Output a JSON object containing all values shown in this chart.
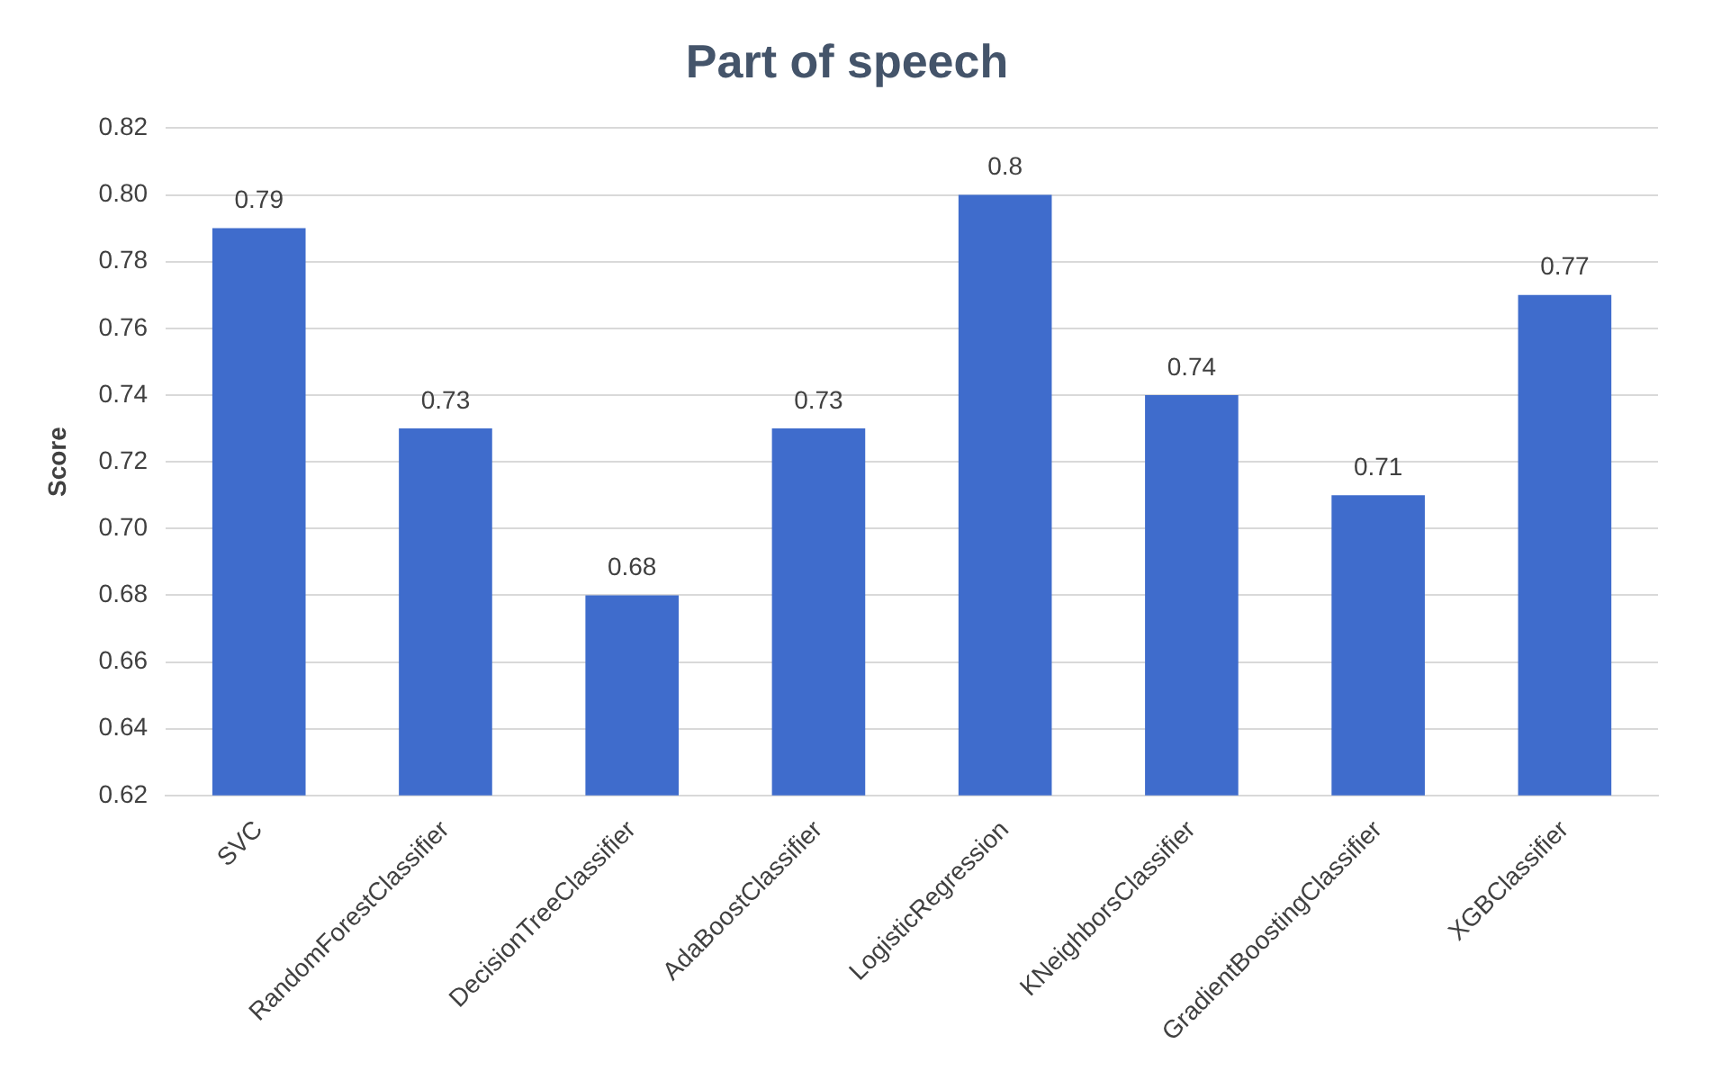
{
  "chart_data": {
    "type": "bar",
    "title": "Part of speech",
    "ylabel": "Score",
    "categories": [
      "SVC",
      "RandomForestClassifier",
      "DecisionTreeClassifier",
      "AdaBoostClassifier",
      "LogisticRegression",
      "KNeighborsClassifier",
      "GradientBoostingClassifier",
      "XGBClassifier"
    ],
    "values": [
      0.79,
      0.73,
      0.68,
      0.73,
      0.8,
      0.74,
      0.71,
      0.77
    ],
    "color": "#3f6ccc",
    "ylim": [
      0.62,
      0.82
    ],
    "yticks": [
      {
        "value": 0.62,
        "label": "0.62"
      },
      {
        "value": 0.64,
        "label": "0.64"
      },
      {
        "value": 0.66,
        "label": "0.66"
      },
      {
        "value": 0.68,
        "label": "0.68"
      },
      {
        "value": 0.7,
        "label": "0.70"
      },
      {
        "value": 0.72,
        "label": "0.72"
      },
      {
        "value": 0.74,
        "label": "0.74"
      },
      {
        "value": 0.76,
        "label": "0.76"
      },
      {
        "value": 0.78,
        "label": "0.78"
      },
      {
        "value": 0.8,
        "label": "0.80"
      },
      {
        "value": 0.82,
        "label": "0.82"
      }
    ],
    "grid": "y",
    "data_labels": true
  }
}
